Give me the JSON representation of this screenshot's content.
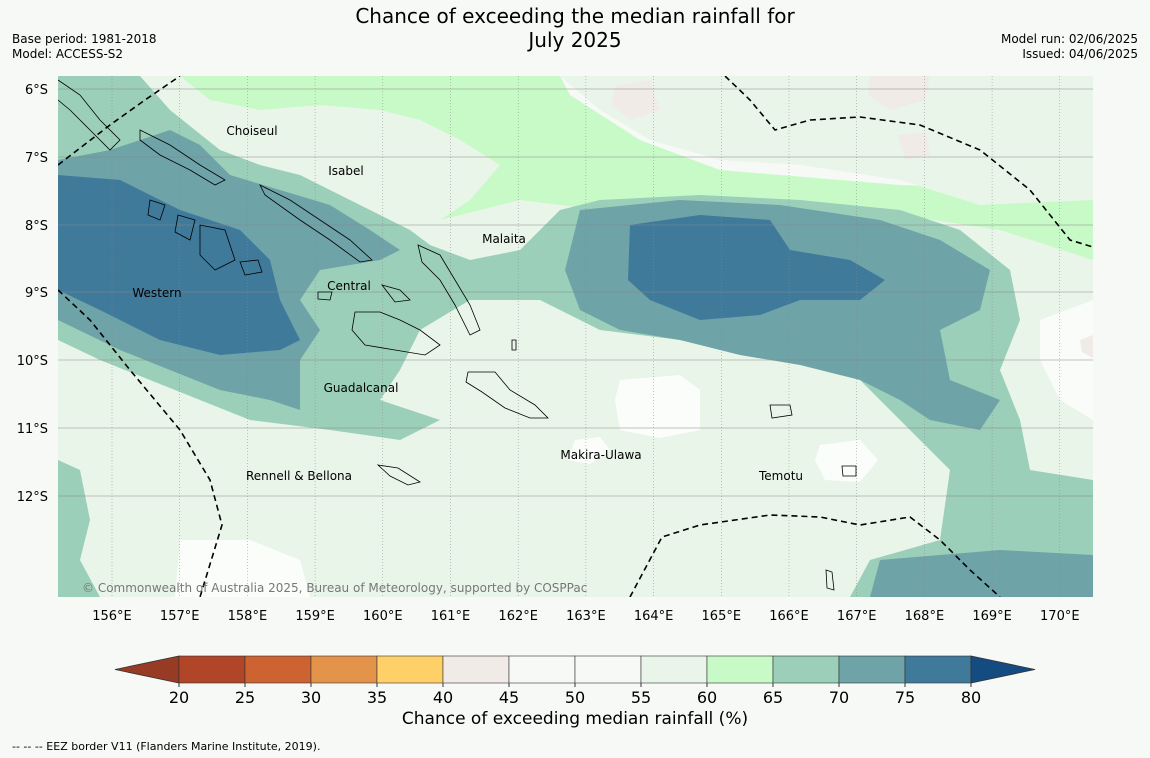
{
  "header": {
    "title_line1": "Chance of exceeding the median rainfall for",
    "title_line2": "July 2025",
    "base_period": "Base period: 1981-2018",
    "model": "Model: ACCESS-S2",
    "model_run": "Model run: 02/06/2025",
    "issued": "Issued: 04/06/2025"
  },
  "map": {
    "lat_labels": [
      "6°S",
      "7°S",
      "8°S",
      "9°S",
      "10°S",
      "11°S",
      "12°S"
    ],
    "lon_labels": [
      "156°E",
      "157°E",
      "158°E",
      "159°E",
      "160°E",
      "161°E",
      "162°E",
      "163°E",
      "164°E",
      "165°E",
      "166°E",
      "167°E",
      "168°E",
      "169°E",
      "170°E"
    ],
    "regions": [
      "Choiseul",
      "Isabel",
      "Malaita",
      "Western",
      "Central",
      "Guadalcanal",
      "Makira-Ulawa",
      "Rennell & Bellona",
      "Temotu"
    ],
    "copyright": "© Commonwealth of Australia 2025, Bureau of Meteorology, supported by COSPPac"
  },
  "colorbar": {
    "ticks": [
      "20",
      "25",
      "30",
      "35",
      "40",
      "45",
      "50",
      "55",
      "60",
      "65",
      "70",
      "75",
      "80"
    ],
    "colors": [
      "#b04527",
      "#cc6331",
      "#e3944a",
      "#ffd068",
      "#f0ebe6",
      "#f7f9f7",
      "#f7f9f7",
      "#eaf5ea",
      "#c8fac8",
      "#9bcfb9",
      "#6ea3a8",
      "#3f7a9b"
    ],
    "under_color": "#983b24",
    "over_color": "#144c82",
    "label": "Chance of exceeding median rainfall (%)"
  },
  "footnote": "--  --  -- EEZ border V11 (Flanders Marine Institute, 2019)."
}
